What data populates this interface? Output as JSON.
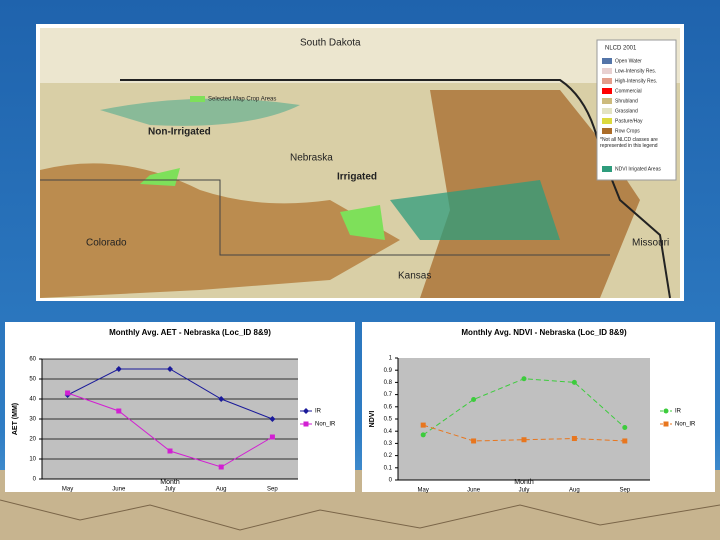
{
  "map": {
    "labels": [
      "South Dakota",
      "Nebraska",
      "Non-Irrigated",
      "Irrigated",
      "Colorado",
      "Kansas",
      "Missouri",
      "Selected Map Crop Areas"
    ],
    "legend_title": "NLCD 2001",
    "legend_items": [
      "Open Water",
      "Low-Intensity Res.",
      "High-Intensity Res.",
      "Commercial",
      "Shrubland",
      "Grassland",
      "Pasture/Hay",
      "Row Crops"
    ],
    "legend_note": "*Not all NLCD classes are represented in this legend",
    "legend_ndvi": "NDVI Irrigated Areas"
  },
  "chart_data": [
    {
      "type": "line",
      "title": "Monthly Avg. AET - Nebraska (Loc_ID 8&9)",
      "x_label": "Month",
      "y_label": "AET (MM)",
      "categories": [
        "May",
        "June",
        "July",
        "Aug",
        "Sep"
      ],
      "series": [
        {
          "name": "IR",
          "color": "#1a1a9a",
          "marker": "diamond",
          "dashed": false,
          "values": [
            42,
            55,
            55,
            40,
            30
          ]
        },
        {
          "name": "Non_IR",
          "color": "#d21fd2",
          "marker": "square",
          "dashed": false,
          "values": [
            43,
            34,
            14,
            6,
            21
          ]
        }
      ],
      "ylim": [
        0,
        60
      ],
      "yticks": [
        0,
        10,
        20,
        30,
        40,
        50,
        60
      ],
      "grid": true
    },
    {
      "type": "line",
      "title": "Monthly Avg. NDVI - Nebraska (Loc_ID 8&9)",
      "x_label": "Month",
      "y_label": "NDVI",
      "categories": [
        "May",
        "June",
        "July",
        "Aug",
        "Sep"
      ],
      "series": [
        {
          "name": "IR",
          "color": "#3ccc3c",
          "marker": "circle",
          "dashed": true,
          "values": [
            0.37,
            0.66,
            0.83,
            0.8,
            0.43
          ]
        },
        {
          "name": "Non_IR",
          "color": "#e8761e",
          "marker": "square",
          "dashed": true,
          "values": [
            0.45,
            0.32,
            0.33,
            0.34,
            0.32
          ]
        }
      ],
      "ylim": [
        0,
        1
      ],
      "yticks": [
        0,
        0.1,
        0.2,
        0.3,
        0.4,
        0.5,
        0.6,
        0.7,
        0.8,
        0.9,
        1
      ],
      "grid": false
    }
  ]
}
